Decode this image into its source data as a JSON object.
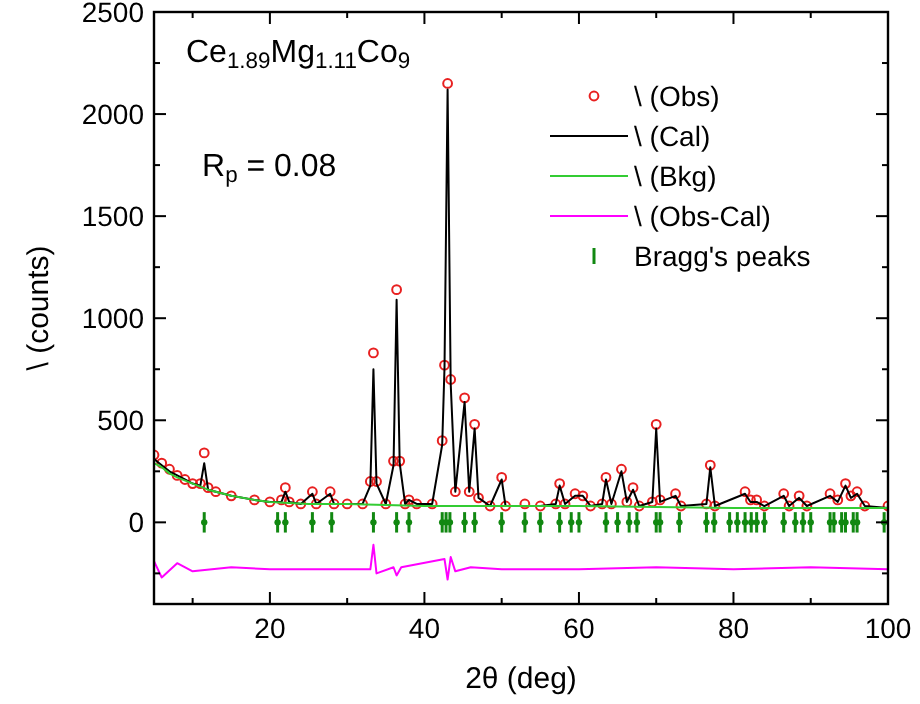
{
  "chart_data": {
    "type": "line",
    "xlabel": "2θ (deg)",
    "ylabel": "\\ (counts)",
    "annotations": [
      "Ce$_{1.89}$Mg$_{1.11}$Co$_{9}$",
      "R$_{p}$ = 0.08"
    ],
    "xlim": [
      5,
      100
    ],
    "ylim": [
      -400,
      2500
    ],
    "xticks": [
      {
        "value": 10,
        "label": null
      },
      20,
      {
        "value": 30,
        "label": null
      },
      40,
      {
        "value": 50,
        "label": null
      },
      60,
      {
        "value": 70,
        "label": null
      },
      80,
      {
        "value": 90,
        "label": null
      },
      100
    ],
    "yticks": [
      {
        "value": -250,
        "label": null
      },
      0,
      {
        "value": 250,
        "label": null
      },
      500,
      {
        "value": 750,
        "label": null
      },
      1000,
      {
        "value": 1250,
        "label": null
      },
      1500,
      {
        "value": 1750,
        "label": null
      },
      2000,
      {
        "value": 2250,
        "label": null
      },
      2500
    ],
    "grid": false,
    "legend": "top right",
    "series": [
      {
        "name": "\\ (Obs)",
        "type": "scatter",
        "marker": "circle",
        "color": "#e82020",
        "x": [
          5,
          6,
          7,
          8,
          9,
          10,
          11,
          11.5,
          12,
          13,
          15,
          18,
          20,
          21.5,
          22,
          22.5,
          24,
          25.5,
          26,
          27.8,
          28.3,
          30,
          32,
          33,
          33.4,
          33.8,
          35,
          36,
          36.4,
          36.8,
          37.5,
          38,
          39,
          41,
          42.3,
          42.6,
          43,
          43.4,
          44,
          45.2,
          45.8,
          46.5,
          47,
          48.5,
          50,
          50.5,
          53,
          55,
          57,
          57.5,
          58.2,
          59.5,
          60.5,
          61.5,
          63,
          63.5,
          64.2,
          65.5,
          66.2,
          67,
          67.8,
          69.5,
          70,
          70.5,
          72.5,
          73.2,
          76.5,
          77,
          77.6,
          81.5,
          82.2,
          83,
          84,
          86.5,
          87.2,
          88.5,
          89.5,
          92.5,
          93.5,
          94.5,
          95.2,
          96,
          97,
          100
        ],
        "values": [
          330,
          290,
          260,
          230,
          210,
          190,
          190,
          340,
          170,
          150,
          130,
          110,
          100,
          110,
          170,
          100,
          90,
          150,
          90,
          150,
          90,
          90,
          90,
          200,
          830,
          200,
          90,
          300,
          1140,
          300,
          90,
          110,
          90,
          90,
          400,
          770,
          2150,
          700,
          150,
          610,
          150,
          480,
          120,
          80,
          220,
          80,
          90,
          80,
          90,
          190,
          90,
          140,
          130,
          80,
          90,
          220,
          90,
          260,
          100,
          170,
          80,
          100,
          480,
          110,
          140,
          80,
          90,
          280,
          80,
          150,
          110,
          110,
          80,
          140,
          80,
          130,
          80,
          140,
          110,
          190,
          130,
          150,
          80,
          80
        ]
      },
      {
        "name": "\\ (Cal)",
        "color": "#000000",
        "x": [
          5,
          6,
          7,
          8,
          9,
          10,
          11,
          11.5,
          12,
          13,
          15,
          18,
          20,
          21.5,
          22,
          22.5,
          24,
          25.5,
          26,
          27.8,
          28.3,
          30,
          32,
          33,
          33.4,
          33.8,
          35,
          36,
          36.4,
          36.8,
          37.5,
          38,
          39,
          41,
          42.3,
          42.6,
          43,
          43.4,
          44,
          45.2,
          45.8,
          46.5,
          47,
          48.5,
          50,
          50.5,
          53,
          55,
          57,
          57.5,
          58.2,
          59.5,
          60.5,
          61.5,
          63,
          63.5,
          64.2,
          65.5,
          66.2,
          67,
          67.8,
          69.5,
          70,
          70.5,
          72.5,
          73.2,
          76.5,
          77,
          77.6,
          81.5,
          82.2,
          83,
          84,
          86.5,
          87.2,
          88.5,
          89.5,
          92.5,
          93.5,
          94.5,
          95.2,
          96,
          97,
          100
        ],
        "values": [
          310,
          280,
          250,
          230,
          210,
          190,
          180,
          290,
          160,
          150,
          130,
          110,
          100,
          100,
          150,
          100,
          90,
          140,
          90,
          140,
          90,
          90,
          90,
          180,
          750,
          190,
          90,
          280,
          1090,
          290,
          90,
          110,
          90,
          90,
          380,
          760,
          2120,
          680,
          150,
          590,
          150,
          460,
          120,
          80,
          210,
          80,
          80,
          80,
          90,
          180,
          90,
          130,
          130,
          80,
          90,
          210,
          90,
          250,
          100,
          160,
          80,
          100,
          460,
          100,
          130,
          80,
          90,
          270,
          80,
          140,
          100,
          100,
          80,
          130,
          80,
          120,
          80,
          130,
          100,
          180,
          120,
          140,
          80,
          70
        ]
      },
      {
        "name": "\\ (Bkg)",
        "color": "#33cc33",
        "x": [
          5,
          6,
          7,
          8,
          10,
          12,
          15,
          18,
          20,
          25,
          30,
          40,
          60,
          80,
          100
        ],
        "values": [
          290,
          270,
          240,
          220,
          190,
          160,
          130,
          110,
          100,
          90,
          90,
          80,
          80,
          70,
          70
        ]
      },
      {
        "name": "\\ (Obs-Cal)",
        "color": "#ff00ff",
        "x": [
          5,
          6,
          8,
          10,
          15,
          20,
          25,
          30,
          33,
          33.4,
          33.8,
          36,
          36.4,
          37,
          42.6,
          43,
          43.4,
          44,
          46,
          50,
          60,
          70,
          80,
          90,
          100
        ],
        "values": [
          -190,
          -270,
          -200,
          -240,
          -220,
          -230,
          -230,
          -230,
          -230,
          -110,
          -250,
          -220,
          -260,
          -220,
          -180,
          -280,
          -170,
          -240,
          -220,
          -230,
          -230,
          -220,
          -230,
          -220,
          -230
        ]
      },
      {
        "name": "Bragg's peaks",
        "type": "scatter",
        "errors": [
          50,
          50,
          50,
          50,
          50,
          50,
          50,
          50,
          50,
          50,
          50,
          50,
          50,
          50,
          50,
          50,
          50,
          50,
          50,
          50,
          50,
          50,
          50,
          50,
          50,
          50,
          50,
          50,
          50,
          50,
          50,
          50,
          50,
          50,
          50,
          50,
          50,
          50,
          50,
          50,
          50,
          50,
          50,
          50,
          50
        ],
        "color": "#118811",
        "x": [
          11.5,
          21,
          22,
          25.5,
          28,
          33.4,
          36.4,
          38,
          42.3,
          42.8,
          43.3,
          45.2,
          46.5,
          50,
          53,
          55,
          57.5,
          59,
          60,
          63.5,
          65,
          66.5,
          67.5,
          70,
          70.5,
          73,
          76.5,
          77.5,
          79.5,
          80.5,
          81.5,
          82.3,
          83,
          84,
          86.5,
          88,
          89,
          90,
          92.5,
          93,
          94,
          94.5,
          95.5,
          96,
          99.5
        ],
        "values": [
          0,
          0,
          0,
          0,
          0,
          0,
          0,
          0,
          0,
          0,
          0,
          0,
          0,
          0,
          0,
          0,
          0,
          0,
          0,
          0,
          0,
          0,
          0,
          0,
          0,
          0,
          0,
          0,
          0,
          0,
          0,
          0,
          0,
          0,
          0,
          0,
          0,
          0,
          0,
          0,
          0,
          0,
          0,
          0,
          0
        ]
      }
    ]
  }
}
